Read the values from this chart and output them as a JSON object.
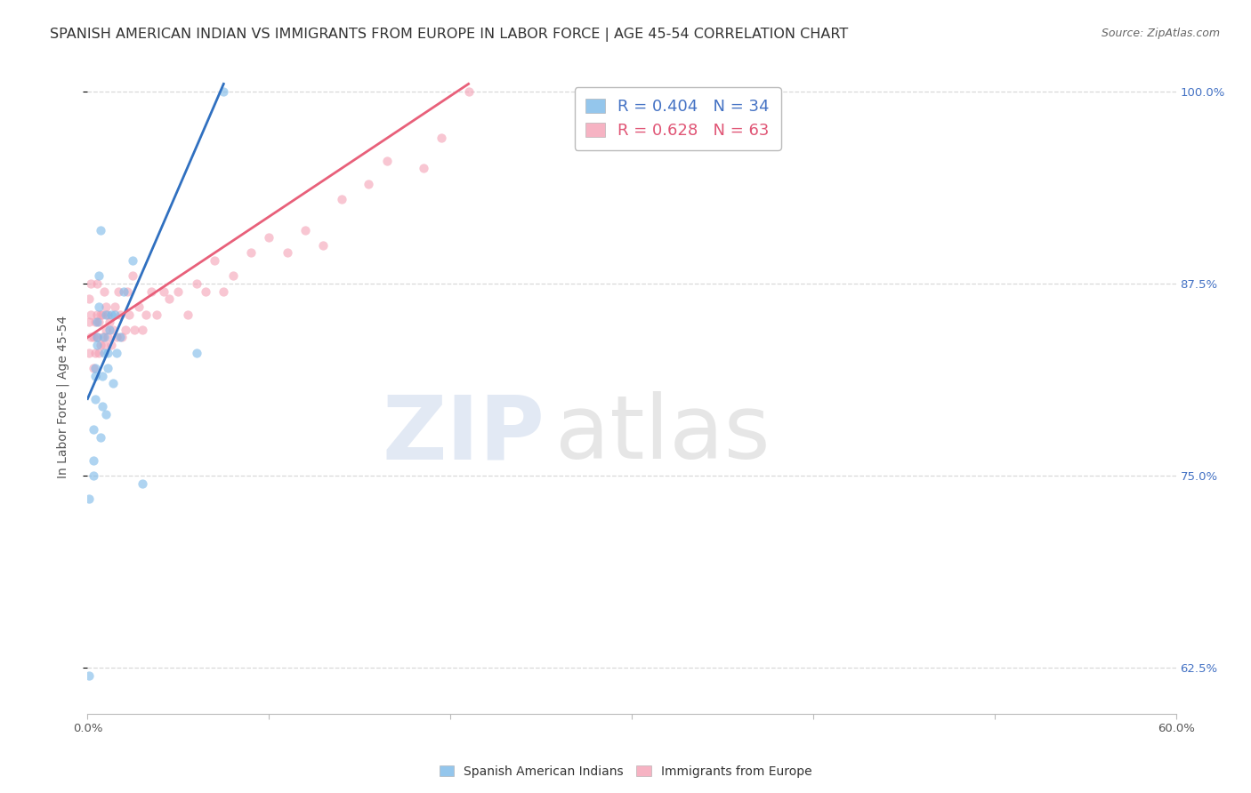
{
  "title": "SPANISH AMERICAN INDIAN VS IMMIGRANTS FROM EUROPE IN LABOR FORCE | AGE 45-54 CORRELATION CHART",
  "source": "Source: ZipAtlas.com",
  "ylabel": "In Labor Force | Age 45-54",
  "xmin": 0.0,
  "xmax": 0.6,
  "ymin": 0.595,
  "ymax": 1.008,
  "yticks": [
    0.625,
    0.75,
    0.875,
    1.0
  ],
  "ytick_labels": [
    "62.5%",
    "75.0%",
    "87.5%",
    "100.0%"
  ],
  "xtick_positions": [
    0.0,
    0.1,
    0.2,
    0.3,
    0.4,
    0.5,
    0.6
  ],
  "xtick_labels": [
    "0.0%",
    "",
    "",
    "",
    "",
    "",
    "60.0%"
  ],
  "legend_blue_r": "0.404",
  "legend_blue_n": "34",
  "legend_pink_r": "0.628",
  "legend_pink_n": "63",
  "blue_color": "#7ab8e8",
  "pink_color": "#f4a0b5",
  "blue_line_color": "#3070c0",
  "pink_line_color": "#e8607a",
  "scatter_alpha": 0.6,
  "scatter_size": 55,
  "blue_points_x": [
    0.001,
    0.001,
    0.003,
    0.003,
    0.003,
    0.004,
    0.004,
    0.004,
    0.005,
    0.005,
    0.005,
    0.006,
    0.006,
    0.007,
    0.007,
    0.008,
    0.008,
    0.009,
    0.009,
    0.01,
    0.01,
    0.011,
    0.011,
    0.012,
    0.013,
    0.014,
    0.015,
    0.016,
    0.018,
    0.02,
    0.025,
    0.03,
    0.06,
    0.075
  ],
  "blue_points_y": [
    0.62,
    0.735,
    0.75,
    0.76,
    0.78,
    0.8,
    0.815,
    0.82,
    0.835,
    0.84,
    0.85,
    0.86,
    0.88,
    0.91,
    0.775,
    0.795,
    0.815,
    0.83,
    0.84,
    0.855,
    0.79,
    0.82,
    0.83,
    0.845,
    0.855,
    0.81,
    0.855,
    0.83,
    0.84,
    0.87,
    0.89,
    0.745,
    0.83,
    1.0
  ],
  "pink_points_x": [
    0.001,
    0.001,
    0.001,
    0.002,
    0.002,
    0.002,
    0.003,
    0.003,
    0.004,
    0.004,
    0.005,
    0.005,
    0.005,
    0.006,
    0.006,
    0.007,
    0.007,
    0.008,
    0.008,
    0.009,
    0.009,
    0.01,
    0.01,
    0.011,
    0.011,
    0.012,
    0.013,
    0.014,
    0.015,
    0.016,
    0.017,
    0.018,
    0.019,
    0.021,
    0.022,
    0.023,
    0.025,
    0.026,
    0.028,
    0.03,
    0.032,
    0.035,
    0.038,
    0.042,
    0.045,
    0.05,
    0.055,
    0.06,
    0.065,
    0.07,
    0.075,
    0.08,
    0.09,
    0.1,
    0.11,
    0.12,
    0.13,
    0.14,
    0.155,
    0.165,
    0.185,
    0.195,
    0.21
  ],
  "pink_points_y": [
    0.83,
    0.85,
    0.865,
    0.84,
    0.855,
    0.875,
    0.82,
    0.84,
    0.83,
    0.85,
    0.84,
    0.855,
    0.875,
    0.83,
    0.85,
    0.835,
    0.855,
    0.84,
    0.855,
    0.835,
    0.87,
    0.845,
    0.86,
    0.84,
    0.855,
    0.85,
    0.835,
    0.845,
    0.86,
    0.84,
    0.87,
    0.855,
    0.84,
    0.845,
    0.87,
    0.855,
    0.88,
    0.845,
    0.86,
    0.845,
    0.855,
    0.87,
    0.855,
    0.87,
    0.865,
    0.87,
    0.855,
    0.875,
    0.87,
    0.89,
    0.87,
    0.88,
    0.895,
    0.905,
    0.895,
    0.91,
    0.9,
    0.93,
    0.94,
    0.955,
    0.95,
    0.97,
    1.0
  ],
  "blue_trendline_x": [
    0.0,
    0.075
  ],
  "blue_trendline_y": [
    0.8,
    1.005
  ],
  "pink_trendline_x": [
    0.0,
    0.21
  ],
  "pink_trendline_y": [
    0.84,
    1.005
  ],
  "watermark_zip": "ZIP",
  "watermark_atlas": "atlas",
  "background_color": "#ffffff",
  "grid_color": "#d8d8d8",
  "title_color": "#333333",
  "axis_label_color": "#555555",
  "right_axis_color": "#4472c4",
  "source_color": "#666666",
  "title_fontsize": 11.5,
  "source_fontsize": 9,
  "axis_label_fontsize": 10,
  "tick_fontsize": 9.5,
  "legend_fontsize": 13
}
